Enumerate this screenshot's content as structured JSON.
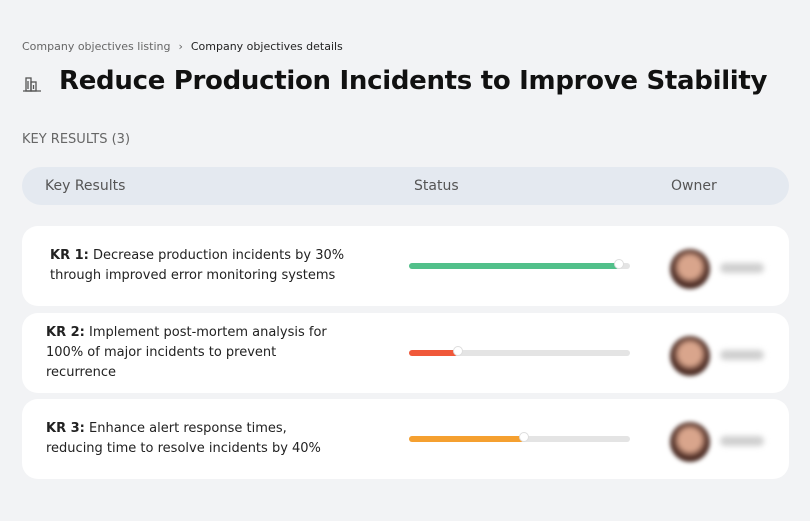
{
  "breadcrumb": {
    "parent": "Company objectives listing",
    "current": "Company objectives details"
  },
  "header": {
    "title": "Reduce Production Incidents to Improve Stability",
    "section": "KEY RESULTS (3)"
  },
  "table": {
    "columns": [
      "Key Results",
      "Status",
      "Owner"
    ],
    "rows": [
      {
        "label": "KR 1:",
        "text": "Decrease production incidents by 30% through improved error monitoring systems",
        "progress": 95,
        "color": "#52c08a"
      },
      {
        "label": "KR 2:",
        "text": "Implement post-mortem analysis for 100% of major incidents to prevent recurrence",
        "progress": 22,
        "color": "#f0583a"
      },
      {
        "label": "KR 3:",
        "text": "Enhance alert response times, reducing time to resolve incidents by 40%",
        "progress": 52,
        "color": "#f5a030"
      }
    ]
  }
}
